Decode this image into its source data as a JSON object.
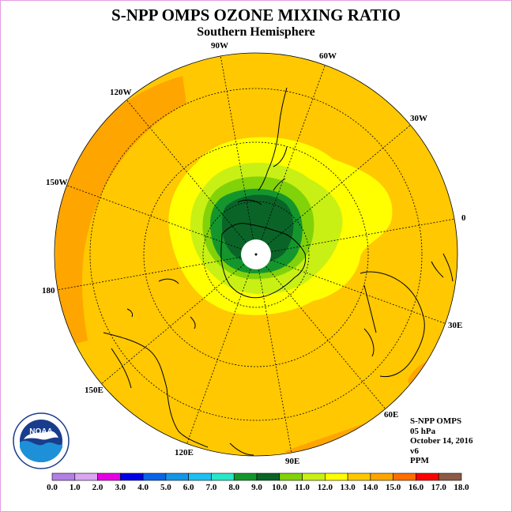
{
  "title": "S-NPP OMPS OZONE MIXING RATIO",
  "subtitle": "Southern Hemisphere",
  "longitude_labels": [
    "90W",
    "60W",
    "30W",
    "0",
    "30E",
    "60E",
    "90E",
    "120E",
    "150E",
    "180",
    "150W",
    "120W"
  ],
  "info": {
    "product": "S-NPP OMPS",
    "level": "05 hPa",
    "date": "October 14, 2016",
    "version": "v6",
    "units": "PPM"
  },
  "colorbar": {
    "labels": [
      "0.0",
      "1.0",
      "2.0",
      "3.0",
      "4.0",
      "5.0",
      "6.0",
      "7.0",
      "8.0",
      "9.0",
      "10.0",
      "11.0",
      "12.0",
      "13.0",
      "14.0",
      "15.0",
      "16.0",
      "17.0",
      "18.0"
    ],
    "colors": [
      "#b27fe6",
      "#d9a6f2",
      "#e600e6",
      "#0000e6",
      "#0a64e6",
      "#1496e6",
      "#1ebef0",
      "#28e6c8",
      "#14962d",
      "#0a6428",
      "#82d20a",
      "#c8f014",
      "#ffff00",
      "#ffc800",
      "#ffa500",
      "#ff6e00",
      "#ff0000",
      "#8c5a46"
    ]
  },
  "logo": {
    "text": "NOAA"
  }
}
